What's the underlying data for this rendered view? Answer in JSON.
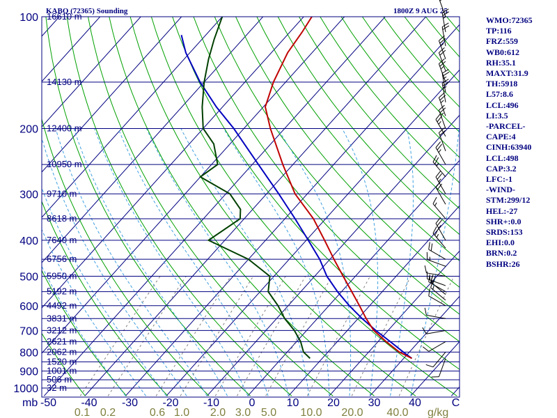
{
  "header": {
    "station": "KABQ (72365) Sounding",
    "time": "1800Z  9 AUG 25"
  },
  "stats": [
    "WMO:72365",
    "TP:116",
    "FRZ:559",
    "WB0:612",
    "RH:35.1",
    "MAXT:31.9",
    "TH:5918",
    "L57:8.6",
    "LCL:496",
    "LI:3.5",
    "-PARCEL-",
    "CAPE:4",
    "CINH:63940",
    "LCL:498",
    "CAP:3.2",
    "LFC:-1",
    "-WIND-",
    "STM:299/12",
    "HEL:-27",
    "SHR+:0.0",
    "SRDS:153",
    "EHI:0.0",
    "BRN:0.2",
    "BSHR:26"
  ],
  "colors": {
    "isobar": "#000080",
    "isotherm": "#000080",
    "dry_adiabat": "#00a000",
    "moist_adiabat": "#40a0e0",
    "mixing_ratio": "#808080",
    "temperature": "#c00000",
    "dewpoint": "#004000",
    "parcel": "#0000c0",
    "pressure_label": "#000080",
    "height_label": "#000080",
    "temp_label": "#000080",
    "mixing_label": "#808040",
    "wind_barb": "#000000"
  },
  "chart_data": {
    "type": "skew-t",
    "xlabel_unit": "mb",
    "mixing_unit": "g/kg",
    "temp_ticks": [
      -50,
      -40,
      -30,
      -20,
      -10,
      0,
      10,
      20,
      30,
      40
    ],
    "temp_tick_labels": [
      "-50",
      "-40",
      "-30",
      "-20",
      "-10",
      "0",
      "10",
      "20",
      "30",
      "40",
      "C"
    ],
    "pressure_levels": [
      100,
      200,
      300,
      400,
      500,
      600,
      700,
      800,
      900,
      1000
    ],
    "pressure_labels": [
      "100",
      "200",
      "300",
      "400",
      "500",
      "600",
      "700",
      "800",
      "900",
      "1000"
    ],
    "height_levels": [
      {
        "p": 100,
        "label": "16610 m"
      },
      {
        "p": 150,
        "label": "14130 m"
      },
      {
        "p": 200,
        "label": "12400 m"
      },
      {
        "p": 250,
        "label": "10950 m"
      },
      {
        "p": 300,
        "label": "9710 m"
      },
      {
        "p": 350,
        "label": "8618 m"
      },
      {
        "p": 400,
        "label": "7640 m"
      },
      {
        "p": 450,
        "label": "6756 m"
      },
      {
        "p": 500,
        "label": "5950 m"
      },
      {
        "p": 550,
        "label": "5192 m"
      },
      {
        "p": 600,
        "label": "4492 m"
      },
      {
        "p": 650,
        "label": "3831 m"
      },
      {
        "p": 700,
        "label": "3212 m"
      },
      {
        "p": 750,
        "label": "2621 m"
      },
      {
        "p": 800,
        "label": "2062 m"
      },
      {
        "p": 850,
        "label": "1520 m"
      },
      {
        "p": 900,
        "label": "1001 m"
      },
      {
        "p": 950,
        "label": "506 m"
      },
      {
        "p": 1000,
        "label": "32 m"
      }
    ],
    "mixing_ratios": [
      0.1,
      0.2,
      0.6,
      1.0,
      2.0,
      3.0,
      5.0,
      10.0,
      20.0,
      40.0
    ],
    "mixing_ratio_labels": [
      "0.1",
      "0.2",
      "0.6",
      "1.0",
      "2.0",
      "3.0",
      "5.0",
      "10.0",
      "20.0",
      "40.0"
    ],
    "temperature": [
      {
        "p": 832,
        "t": 32.0
      },
      {
        "p": 800,
        "t": 27.5
      },
      {
        "p": 750,
        "t": 22.0
      },
      {
        "p": 700,
        "t": 16.5
      },
      {
        "p": 650,
        "t": 12.0
      },
      {
        "p": 600,
        "t": 7.5
      },
      {
        "p": 550,
        "t": 2.5
      },
      {
        "p": 500,
        "t": -3.0
      },
      {
        "p": 450,
        "t": -9.0
      },
      {
        "p": 400,
        "t": -15.5
      },
      {
        "p": 350,
        "t": -23.0
      },
      {
        "p": 300,
        "t": -33.0
      },
      {
        "p": 250,
        "t": -42.5
      },
      {
        "p": 200,
        "t": -53.5
      },
      {
        "p": 175,
        "t": -59.5
      },
      {
        "p": 150,
        "t": -63.0
      },
      {
        "p": 125,
        "t": -66.0
      },
      {
        "p": 110,
        "t": -67.0
      },
      {
        "p": 100,
        "t": -68.0
      }
    ],
    "dewpoint": [
      {
        "p": 832,
        "t": 7.0
      },
      {
        "p": 800,
        "t": 4.0
      },
      {
        "p": 750,
        "t": 1.0
      },
      {
        "p": 700,
        "t": -3.0
      },
      {
        "p": 650,
        "t": -8.0
      },
      {
        "p": 600,
        "t": -12.5
      },
      {
        "p": 550,
        "t": -18.0
      },
      {
        "p": 500,
        "t": -21.0
      },
      {
        "p": 450,
        "t": -30.0
      },
      {
        "p": 400,
        "t": -44.0
      },
      {
        "p": 350,
        "t": -41.0
      },
      {
        "p": 330,
        "t": -43.0
      },
      {
        "p": 300,
        "t": -49.0
      },
      {
        "p": 270,
        "t": -60.0
      },
      {
        "p": 250,
        "t": -58.5
      },
      {
        "p": 220,
        "t": -64.0
      },
      {
        "p": 200,
        "t": -70.0
      },
      {
        "p": 175,
        "t": -75.0
      },
      {
        "p": 150,
        "t": -80.0
      },
      {
        "p": 130,
        "t": -84.0
      },
      {
        "p": 115,
        "t": -87.0
      },
      {
        "p": 100,
        "t": -90.0
      }
    ],
    "parcel": [
      {
        "p": 832,
        "t": 32.0
      },
      {
        "p": 800,
        "t": 28.5
      },
      {
        "p": 750,
        "t": 23.0
      },
      {
        "p": 700,
        "t": 17.0
      },
      {
        "p": 650,
        "t": 11.0
      },
      {
        "p": 600,
        "t": 5.0
      },
      {
        "p": 550,
        "t": -1.0
      },
      {
        "p": 500,
        "t": -7.0
      },
      {
        "p": 450,
        "t": -12.5
      },
      {
        "p": 400,
        "t": -19.5
      },
      {
        "p": 350,
        "t": -27.5
      },
      {
        "p": 300,
        "t": -37.0
      },
      {
        "p": 250,
        "t": -48.5
      },
      {
        "p": 200,
        "t": -62.5
      },
      {
        "p": 175,
        "t": -71.5
      },
      {
        "p": 150,
        "t": -81.0
      },
      {
        "p": 125,
        "t": -91.0
      },
      {
        "p": 112,
        "t": -96.0
      }
    ],
    "wind_barbs": [
      {
        "p": 832,
        "dir": 200,
        "spd": 10
      },
      {
        "p": 800,
        "dir": 220,
        "spd": 10
      },
      {
        "p": 750,
        "dir": 240,
        "spd": 10
      },
      {
        "p": 700,
        "dir": 260,
        "spd": 10
      },
      {
        "p": 650,
        "dir": 280,
        "spd": 10
      },
      {
        "p": 600,
        "dir": 300,
        "spd": 10
      },
      {
        "p": 580,
        "dir": 310,
        "spd": 15
      },
      {
        "p": 560,
        "dir": 310,
        "spd": 20
      },
      {
        "p": 550,
        "dir": 300,
        "spd": 20
      },
      {
        "p": 530,
        "dir": 290,
        "spd": 15
      },
      {
        "p": 500,
        "dir": 280,
        "spd": 10
      },
      {
        "p": 470,
        "dir": 290,
        "spd": 15
      },
      {
        "p": 450,
        "dir": 300,
        "spd": 20
      },
      {
        "p": 420,
        "dir": 320,
        "spd": 25
      },
      {
        "p": 400,
        "dir": 330,
        "spd": 25
      },
      {
        "p": 350,
        "dir": 320,
        "spd": 15
      },
      {
        "p": 320,
        "dir": 330,
        "spd": 20
      },
      {
        "p": 300,
        "dir": 330,
        "spd": 25
      },
      {
        "p": 270,
        "dir": 320,
        "spd": 25
      },
      {
        "p": 250,
        "dir": 330,
        "spd": 25
      },
      {
        "p": 230,
        "dir": 340,
        "spd": 20
      },
      {
        "p": 210,
        "dir": 330,
        "spd": 25
      },
      {
        "p": 200,
        "dir": 340,
        "spd": 25
      },
      {
        "p": 185,
        "dir": 340,
        "spd": 25
      },
      {
        "p": 170,
        "dir": 350,
        "spd": 25
      },
      {
        "p": 160,
        "dir": 350,
        "spd": 25
      },
      {
        "p": 150,
        "dir": 340,
        "spd": 25
      },
      {
        "p": 140,
        "dir": 340,
        "spd": 20
      },
      {
        "p": 130,
        "dir": 340,
        "spd": 25
      },
      {
        "p": 120,
        "dir": 350,
        "spd": 20
      },
      {
        "p": 110,
        "dir": 350,
        "spd": 25
      },
      {
        "p": 100,
        "dir": 340,
        "spd": 20
      }
    ]
  }
}
